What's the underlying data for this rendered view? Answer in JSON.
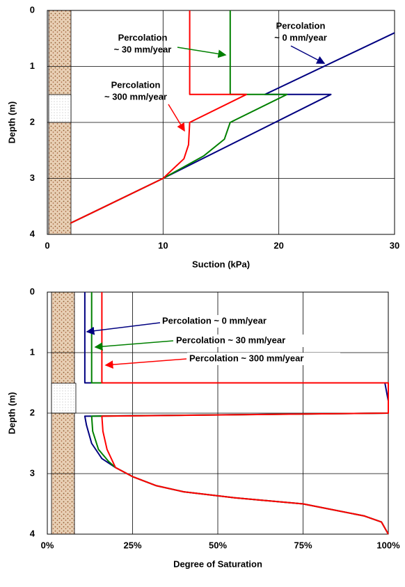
{
  "chart_data": [
    {
      "type": "line",
      "x_label": "Suction (kPa)",
      "y_label": "Depth (m)",
      "xlim": [
        0,
        30
      ],
      "xticks": [
        0,
        10,
        20,
        30
      ],
      "ylim": [
        0,
        4
      ],
      "yticks": [
        0,
        1,
        2,
        3,
        4
      ],
      "y_inverted": true,
      "grid": true,
      "series": [
        {
          "name": "Percolation ~ 0 mm/year",
          "color": "#000080",
          "x": [
            30,
            18.8,
            24.5,
            10,
            2
          ],
          "values": [
            0.4,
            1.5,
            1.5,
            3.0,
            3.8
          ]
        },
        {
          "name": "Percolation ~ 30 mm/year",
          "color": "#008000",
          "x": [
            15.8,
            15.8,
            20.7,
            15.8,
            15.3,
            13.5,
            10,
            2
          ],
          "values": [
            0,
            1.5,
            1.5,
            2.0,
            2.3,
            2.6,
            3.0,
            3.8
          ]
        },
        {
          "name": "Percolation ~ 300 mm/year",
          "color": "#ff0000",
          "x": [
            12.3,
            12.3,
            17.2,
            12.3,
            12.2,
            11.8,
            10,
            2
          ],
          "values": [
            0,
            1.5,
            1.5,
            2.0,
            2.4,
            2.65,
            3.0,
            3.8
          ]
        }
      ],
      "annotations": [
        [
          "Percolation",
          "~ 30 mm/year"
        ],
        [
          "Percolation",
          "~ 300 mm/year"
        ],
        [
          "Percolation",
          "~ 0 mm/year"
        ]
      ]
    },
    {
      "type": "line",
      "x_label": "Degree of Saturation",
      "y_label": "Depth (m)",
      "xlim": [
        0,
        100
      ],
      "xticks": [
        {
          "value": 0,
          "label": "0%"
        },
        {
          "value": 25,
          "label": "25%"
        },
        {
          "value": 50,
          "label": "50%"
        },
        {
          "value": 75,
          "label": "75%"
        },
        {
          "value": 100,
          "label": "100%"
        }
      ],
      "ylim": [
        0,
        4
      ],
      "yticks": [
        0,
        1,
        2,
        3,
        4
      ],
      "y_inverted": true,
      "grid": true,
      "series": [
        {
          "name": "Percolation ~ 0 mm/year",
          "color": "#000080",
          "x": [
            11,
            11,
            99,
            100,
            100,
            11,
            11.5,
            13,
            16,
            20,
            25,
            32,
            40,
            55,
            75,
            93,
            98,
            100
          ],
          "values": [
            0,
            1.5,
            1.5,
            1.8,
            2.0,
            2.05,
            2.2,
            2.5,
            2.75,
            2.9,
            3.05,
            3.2,
            3.3,
            3.4,
            3.5,
            3.7,
            3.8,
            4.0
          ]
        },
        {
          "name": "Percolation ~ 30 mm/year",
          "color": "#008000",
          "x": [
            13,
            13,
            100,
            100,
            13,
            13.3,
            15,
            18,
            20,
            25,
            32,
            40,
            55,
            75,
            93,
            98,
            100
          ],
          "values": [
            0,
            1.5,
            1.5,
            2.0,
            2.05,
            2.3,
            2.6,
            2.8,
            2.9,
            3.05,
            3.2,
            3.3,
            3.4,
            3.5,
            3.7,
            3.8,
            4.0
          ]
        },
        {
          "name": "Percolation ~ 300 mm/year",
          "color": "#ff0000",
          "x": [
            16,
            16,
            100,
            100,
            16,
            16.3,
            17.5,
            20,
            25,
            32,
            40,
            55,
            75,
            93,
            98,
            100
          ],
          "values": [
            0,
            1.5,
            1.5,
            2.0,
            2.05,
            2.3,
            2.6,
            2.9,
            3.05,
            3.2,
            3.3,
            3.4,
            3.5,
            3.7,
            3.8,
            4.0
          ]
        }
      ]
    }
  ]
}
